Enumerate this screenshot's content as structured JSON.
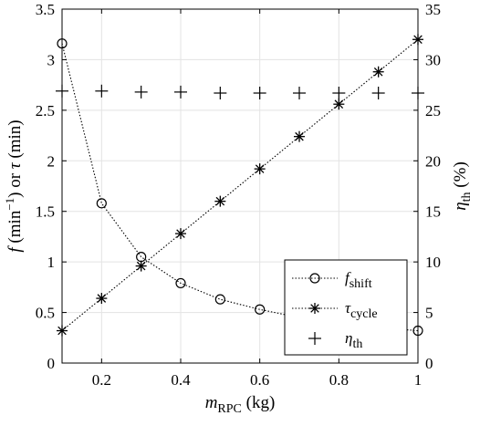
{
  "chart_data": {
    "type": "line",
    "x": [
      0.1,
      0.2,
      0.3,
      0.4,
      0.5,
      0.6,
      0.7,
      0.8,
      0.9,
      1.0
    ],
    "xlim": [
      0.1,
      1.0
    ],
    "ylim_left": [
      0,
      3.5
    ],
    "ylim_right": [
      0,
      35
    ],
    "x_ticks": [
      "0.2",
      "0.4",
      "0.6",
      "0.8",
      "1"
    ],
    "y_left_ticks": [
      "0",
      "0.5",
      "1",
      "1.5",
      "2",
      "2.5",
      "3",
      "3.5"
    ],
    "y_right_ticks": [
      "0",
      "5",
      "10",
      "15",
      "20",
      "25",
      "30",
      "35"
    ],
    "xlabel": {
      "main": "m",
      "sub": "RPC",
      "rest": " (kg)"
    },
    "ylabel_left": {
      "f": "f",
      "paren1": " (min",
      "sup": "−1",
      "paren2": ")",
      "or": "  or  ",
      "tau": "τ",
      "unit": " (min)"
    },
    "ylabel_right": {
      "main": "η",
      "sub": "th",
      "rest": " (%)"
    },
    "grid": true,
    "legend_position": "bottom-right",
    "series": [
      {
        "key": "f_shift",
        "legend_main": "f",
        "legend_sub": "shift",
        "axis": "left",
        "marker": "circle",
        "values": [
          3.16,
          1.58,
          1.05,
          0.79,
          0.63,
          0.53,
          0.45,
          0.395,
          0.35,
          0.32
        ]
      },
      {
        "key": "tau_cycle",
        "legend_main": "τ",
        "legend_sub": "cycle",
        "axis": "left",
        "marker": "asterisk",
        "values": [
          0.32,
          0.64,
          0.96,
          1.28,
          1.6,
          1.92,
          2.24,
          2.56,
          2.88,
          3.2
        ]
      },
      {
        "key": "eta_th",
        "legend_main": "η",
        "legend_sub": "th",
        "axis": "right",
        "marker": "plus",
        "values": [
          26.9,
          26.9,
          26.8,
          26.8,
          26.7,
          26.7,
          26.7,
          26.7,
          26.7,
          26.7
        ]
      }
    ]
  }
}
